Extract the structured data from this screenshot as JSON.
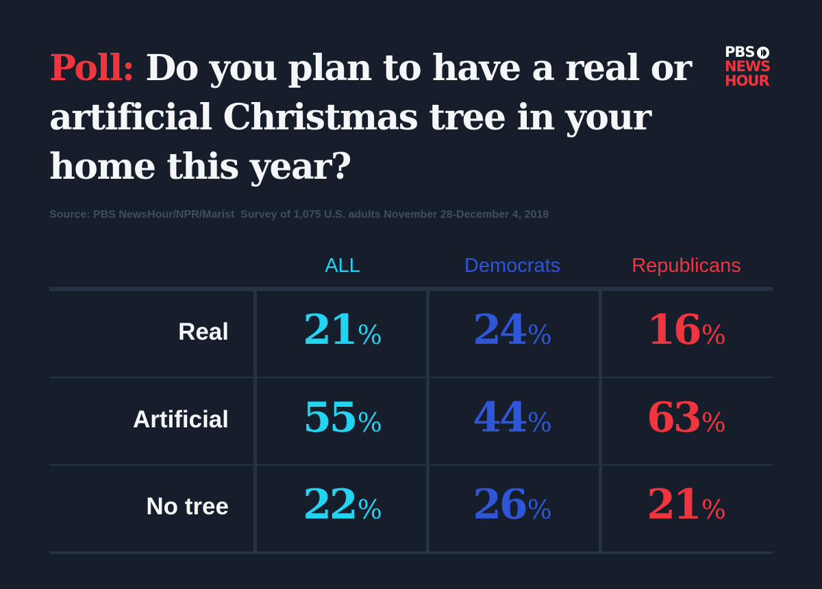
{
  "title": {
    "prefix": "Poll:",
    "question": "Do you plan to have a real or artificial Christmas tree in your home this year?"
  },
  "logo": {
    "line1": "PBS",
    "line2": "NEWS",
    "line3": "HOUR"
  },
  "source": "Source: PBS NewsHour/NPR/Marist  Survey of 1,075 U.S. adults November 28-December 4, 2018",
  "colors": {
    "background": "#161e2c",
    "all": "#22d3f2",
    "democrats": "#2f56d6",
    "republicans": "#f0353f",
    "grid": "#283142"
  },
  "chart_data": {
    "type": "table",
    "columns": [
      "ALL",
      "Democrats",
      "Republicans"
    ],
    "rows": [
      {
        "label": "Real",
        "values": [
          21,
          24,
          16
        ]
      },
      {
        "label": "Artificial",
        "values": [
          55,
          44,
          63
        ]
      },
      {
        "label": "No tree",
        "values": [
          22,
          26,
          21
        ]
      }
    ],
    "unit": "%"
  }
}
